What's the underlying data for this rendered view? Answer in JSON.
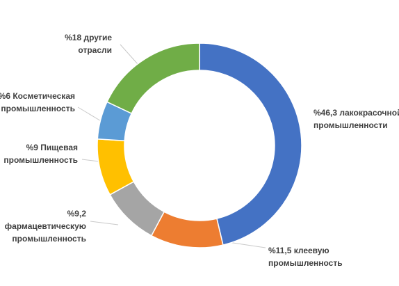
{
  "chart_data": {
    "type": "pie",
    "variant": "donut",
    "unit": "%",
    "slices": [
      {
        "label_lines": [
          "%46,3 лакокрасочной",
          "промышленности"
        ],
        "value": 46.3,
        "color": "#4472c4"
      },
      {
        "label_lines": [
          "%11,5 клеевую",
          "промышленность"
        ],
        "value": 11.5,
        "color": "#ed7d31"
      },
      {
        "label_lines": [
          "%9,2",
          "фармацевтическую",
          "промышленность"
        ],
        "value": 9.2,
        "color": "#a5a5a5"
      },
      {
        "label_lines": [
          "%9 Пищевая",
          "промышленность"
        ],
        "value": 9,
        "color": "#ffc000"
      },
      {
        "label_lines": [
          "%6  Косметическая",
          "промышленность"
        ],
        "value": 6,
        "color": "#5b9bd5"
      },
      {
        "label_lines": [
          "%18 другие",
          "отрасли"
        ],
        "value": 18,
        "color": "#70ad47"
      }
    ],
    "legend": "none",
    "labels_outside": true
  }
}
